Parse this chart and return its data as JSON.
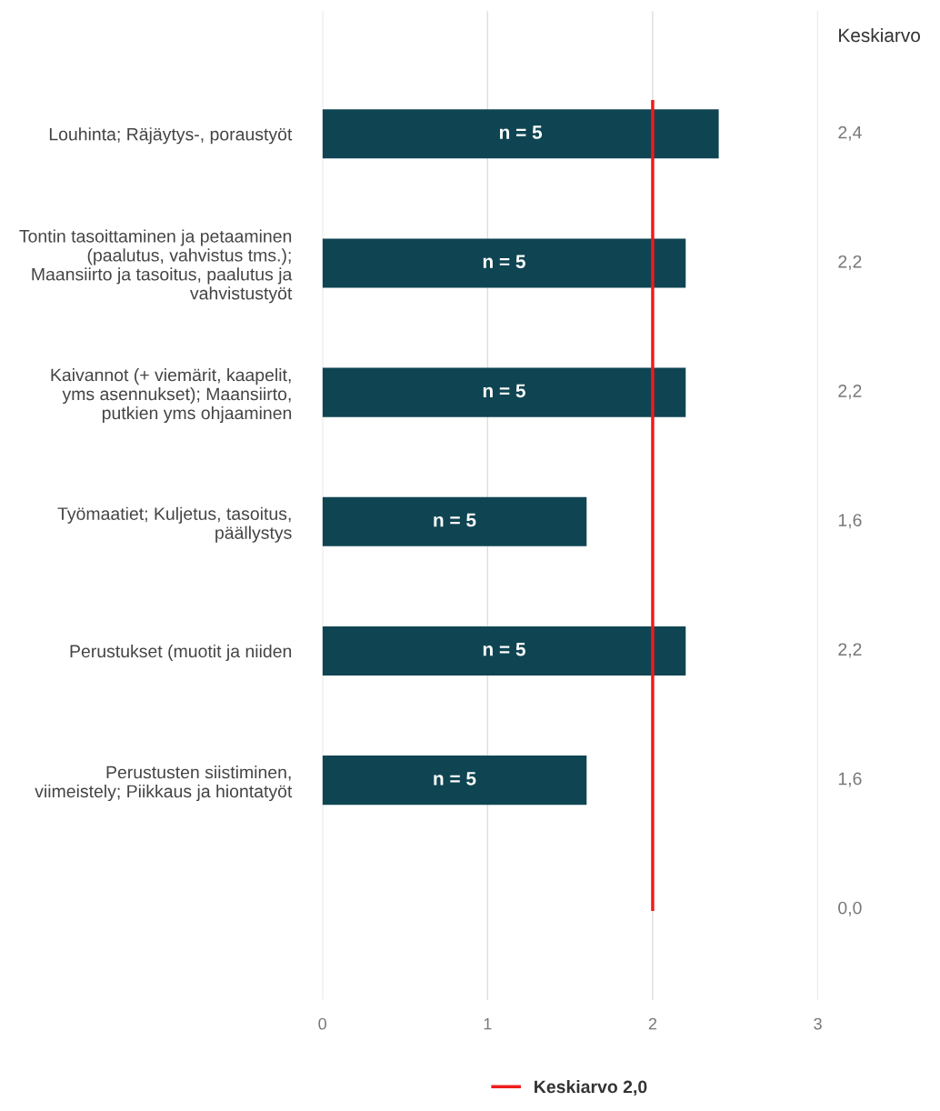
{
  "chart_data": {
    "type": "bar",
    "orientation": "horizontal",
    "categories": [
      "Louhinta; Räjäytys-, poraustyöt",
      "Tontin tasoittaminen ja petaaminen\n(paalutus, vahvistus tms.);\nMaansiirto ja tasoitus, paalutus ja\nvahvistustyöt",
      "Kaivannot (+ viemärit, kaapelit,\nyms asennukset); Maansiirto,\nputkien yms ohjaaminen",
      "Työmaatiet; Kuljetus, tasoitus,\npäällystys",
      "Perustukset (muotit ja niiden",
      "Perustusten siistiminen,\nviimeistely; Piikkaus ja hiontatyöt",
      null
    ],
    "values": [
      2.4,
      2.2,
      2.2,
      1.6,
      2.2,
      1.6,
      0.0
    ],
    "color": "#0f4552",
    "value_labels": [
      "2,4",
      "2,2",
      "2,2",
      "1,6",
      "2,2",
      "1,6",
      "0,0"
    ],
    "y2label": "Keskiarvo",
    "annotations": [
      "n = 5",
      "n = 5",
      "n = 5",
      "n = 5",
      "n = 5",
      "n = 5"
    ],
    "ref_lines": [
      {
        "axis": "x",
        "value": 2.0,
        "label": "Keskiarvo 2,0",
        "color": "#ee1c1c"
      }
    ],
    "xlim": [
      0,
      3
    ],
    "xticks": [
      0,
      1,
      2,
      3
    ],
    "grid": "x",
    "legend": "bottom"
  }
}
